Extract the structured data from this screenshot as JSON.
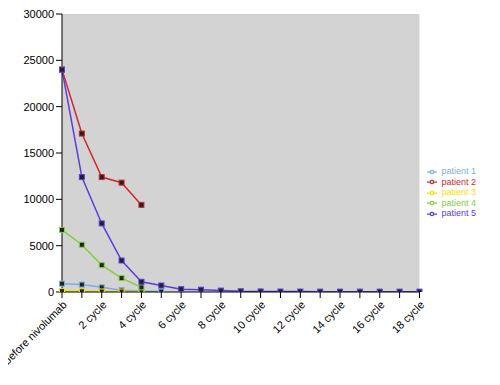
{
  "chart_data": {
    "type": "line",
    "categories": [
      "before nivolumab",
      null,
      "2 cycle",
      null,
      "4 cycle",
      null,
      "6 cycle",
      null,
      "8 cycle",
      null,
      "10 cycle",
      null,
      "12 cycle",
      null,
      "14 cycle",
      null,
      "16 cycle",
      null,
      "18 cycle"
    ],
    "ylim": [
      0,
      30000
    ],
    "yticks": [
      0,
      5000,
      10000,
      15000,
      20000,
      25000,
      30000
    ],
    "grid": false,
    "legend": "right",
    "series": [
      {
        "name": "patient 1",
        "color": "#7baee0",
        "marker": "square",
        "values": [
          900,
          800,
          500,
          200,
          100,
          50,
          null,
          null,
          null,
          null,
          null,
          null,
          null,
          null,
          null,
          null,
          null,
          null,
          null
        ]
      },
      {
        "name": "patient 2",
        "color": "#cc2a2a",
        "marker": "square",
        "values": [
          24000,
          17100,
          12400,
          11800,
          9400,
          null,
          null,
          null,
          null,
          null,
          null,
          null,
          null,
          null,
          null,
          null,
          null,
          null,
          null
        ]
      },
      {
        "name": "patient 3",
        "color": "#f2e200",
        "marker": "square",
        "values": [
          100,
          80,
          60,
          50,
          40,
          null,
          null,
          null,
          null,
          null,
          null,
          null,
          null,
          null,
          null,
          null,
          null,
          null,
          null
        ]
      },
      {
        "name": "patient 4",
        "color": "#80d040",
        "marker": "square",
        "values": [
          6700,
          5100,
          2900,
          1500,
          500,
          null,
          null,
          null,
          null,
          null,
          null,
          null,
          null,
          null,
          null,
          null,
          null,
          null,
          null
        ]
      },
      {
        "name": "patient 5",
        "color": "#5a3de0",
        "marker": "square",
        "values": [
          24000,
          12400,
          7400,
          3400,
          1100,
          700,
          300,
          250,
          150,
          80,
          60,
          50,
          50,
          40,
          40,
          40,
          40,
          40,
          40
        ]
      }
    ]
  }
}
